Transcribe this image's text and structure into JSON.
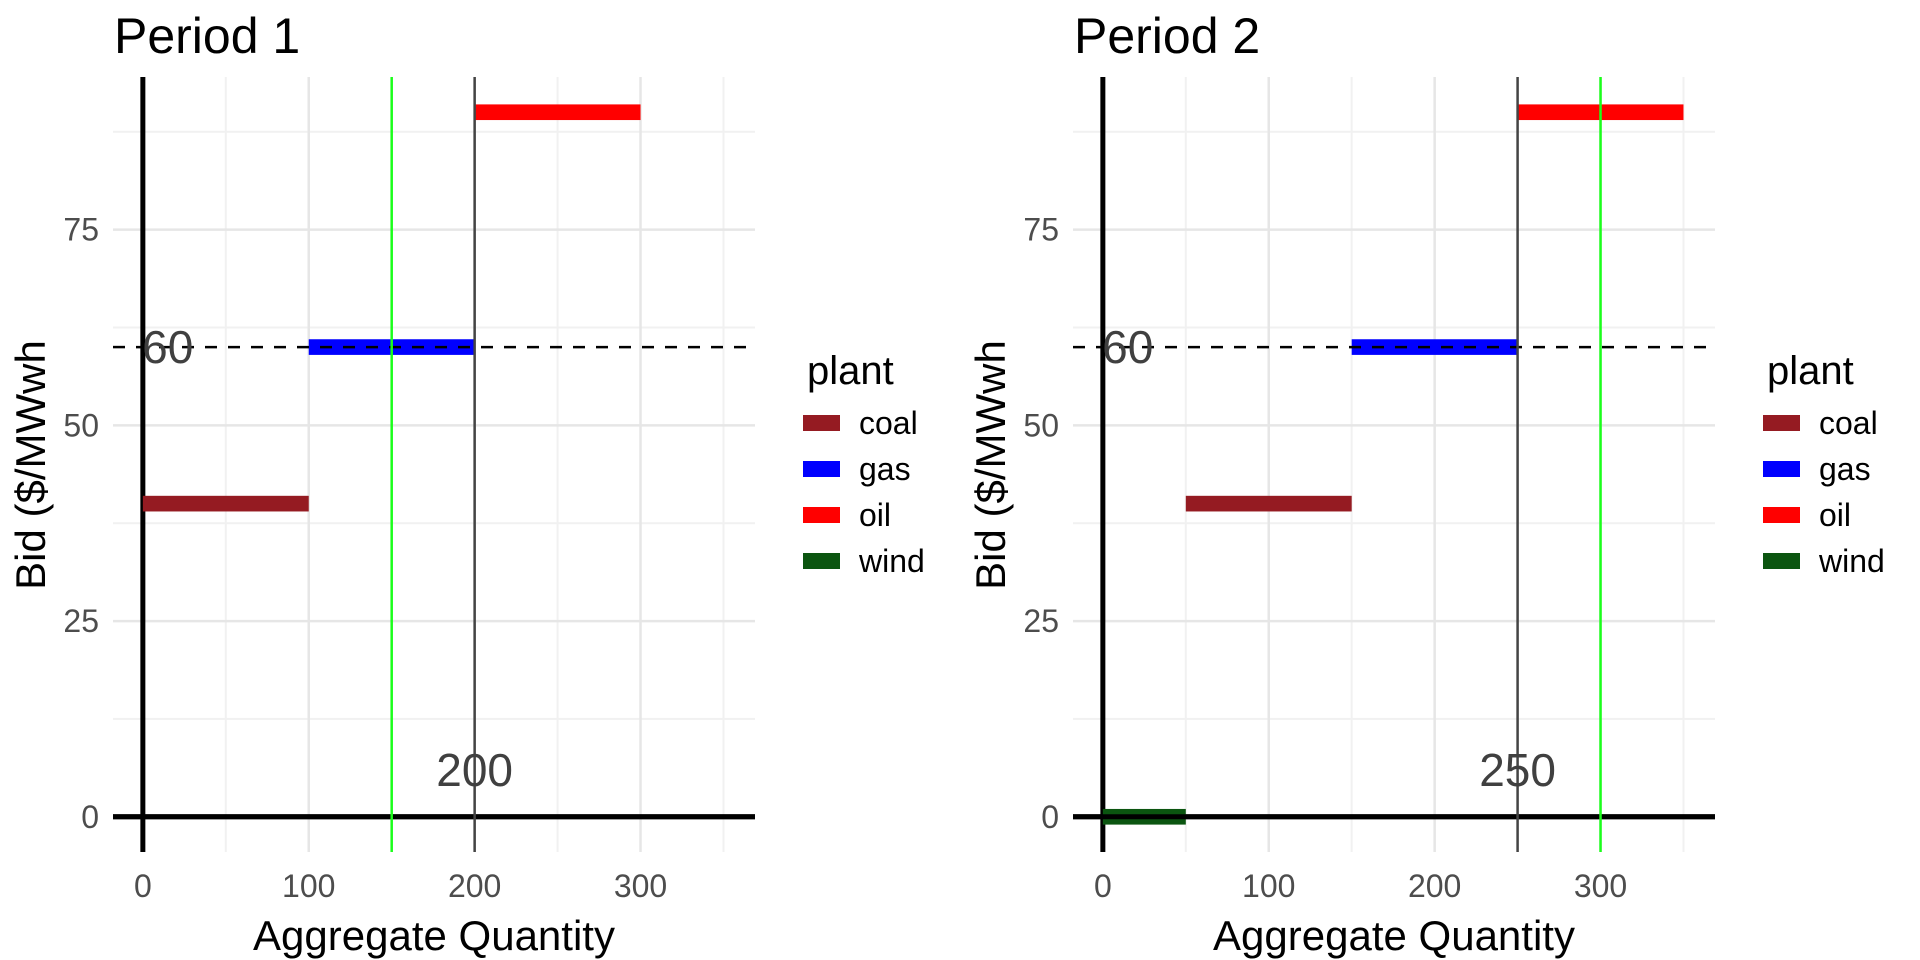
{
  "chart_data": [
    {
      "type": "bar",
      "subtype": "horizontal-segment supply curve",
      "title": "Period 1",
      "xlabel": "Aggregate Quantity",
      "ylabel": "Bid ($/MWwh",
      "xlim": [
        -18,
        369
      ],
      "ylim": [
        -4.5,
        94.5
      ],
      "x_ticks": [
        0,
        100,
        200,
        300
      ],
      "x_tick_labels": [
        "0",
        "100",
        "200",
        "300"
      ],
      "y_ticks": [
        0,
        25,
        50,
        75
      ],
      "y_tick_labels": [
        "0",
        "25",
        "50",
        "75"
      ],
      "grid": true,
      "segments": [
        {
          "plant": "coal",
          "x_start": 0,
          "x_end": 100,
          "bid": 40
        },
        {
          "plant": "gas",
          "x_start": 100,
          "x_end": 200,
          "bid": 60
        },
        {
          "plant": "oil",
          "x_start": 200,
          "x_end": 300,
          "bid": 90
        }
      ],
      "demand_line": {
        "x": 150,
        "color": "#1aff1a"
      },
      "clearing_quantity_line": {
        "x": 200,
        "color": "#444444"
      },
      "price_line": {
        "y": 60,
        "style": "dashed"
      },
      "annotations": [
        {
          "text": "60",
          "x": 15,
          "y": 60
        },
        {
          "text": "200",
          "x": 200,
          "y": 6
        }
      ],
      "legend": {
        "title": "plant",
        "position": "right",
        "entries": [
          "coal",
          "gas",
          "oil",
          "wind"
        ]
      }
    },
    {
      "type": "bar",
      "subtype": "horizontal-segment supply curve",
      "title": "Period 2",
      "xlabel": "Aggregate Quantity",
      "ylabel": "Bid ($/MWwh",
      "xlim": [
        -18,
        369
      ],
      "ylim": [
        -4.5,
        94.5
      ],
      "x_ticks": [
        0,
        100,
        200,
        300
      ],
      "x_tick_labels": [
        "0",
        "100",
        "200",
        "300"
      ],
      "y_ticks": [
        0,
        25,
        50,
        75
      ],
      "y_tick_labels": [
        "0",
        "25",
        "50",
        "75"
      ],
      "grid": true,
      "segments": [
        {
          "plant": "wind",
          "x_start": 0,
          "x_end": 50,
          "bid": 0
        },
        {
          "plant": "coal",
          "x_start": 50,
          "x_end": 150,
          "bid": 40
        },
        {
          "plant": "gas",
          "x_start": 150,
          "x_end": 250,
          "bid": 60
        },
        {
          "plant": "oil",
          "x_start": 250,
          "x_end": 350,
          "bid": 90
        }
      ],
      "demand_line": {
        "x": 300,
        "color": "#1aff1a"
      },
      "clearing_quantity_line": {
        "x": 250,
        "color": "#444444"
      },
      "price_line": {
        "y": 60,
        "style": "dashed"
      },
      "annotations": [
        {
          "text": "60",
          "x": 15,
          "y": 60
        },
        {
          "text": "250",
          "x": 250,
          "y": 6
        }
      ],
      "legend": {
        "title": "plant",
        "position": "right",
        "entries": [
          "coal",
          "gas",
          "oil",
          "wind"
        ]
      }
    }
  ],
  "colors": {
    "coal": "#951b22",
    "gas": "#0000ff",
    "oil": "#ff0000",
    "wind": "#0b5510"
  }
}
